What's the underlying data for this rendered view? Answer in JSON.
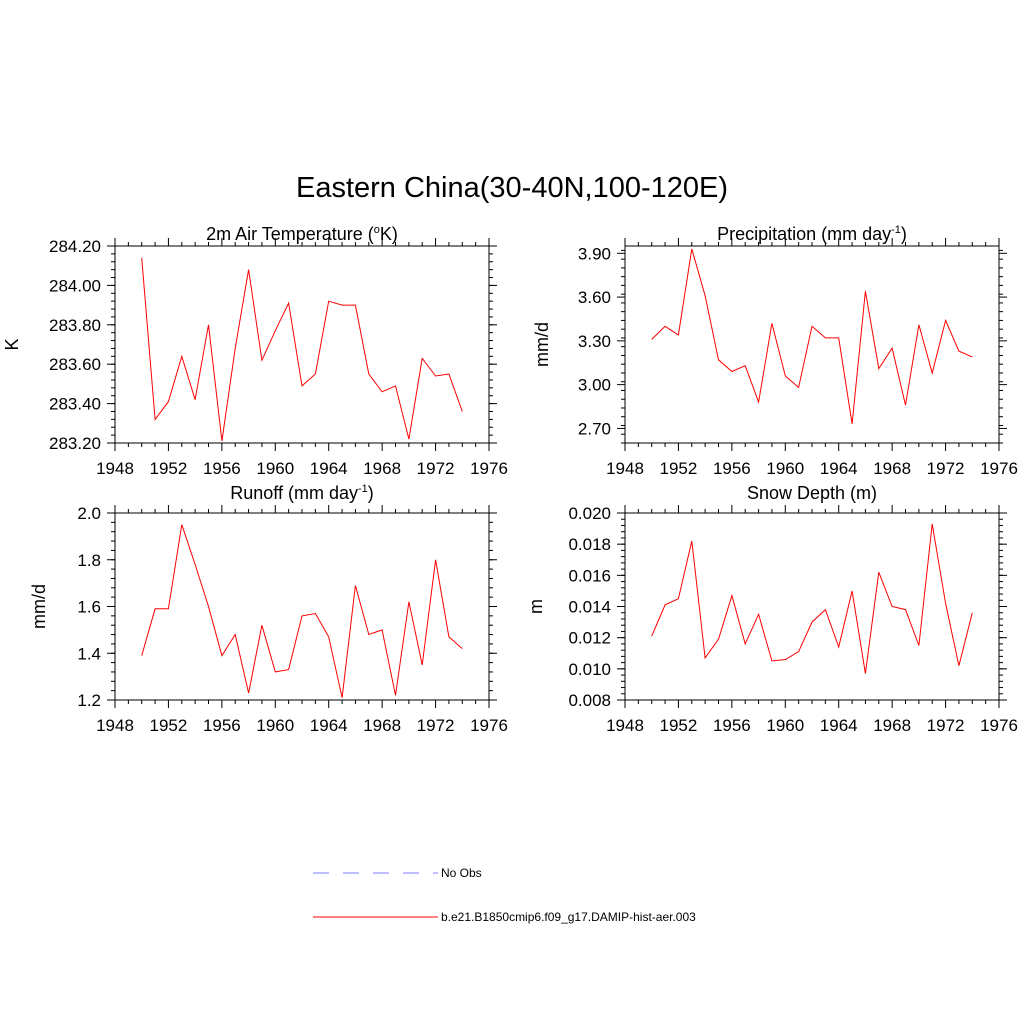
{
  "title": "Eastern China(30-40N,100-120E)",
  "chart_data": [
    {
      "type": "line",
      "title_main": "2m Air Temperature (",
      "title_sup": "o",
      "title_tail": "K)",
      "ylabel": "K",
      "xlim": [
        1948,
        1976
      ],
      "ylim": [
        283.2,
        284.2
      ],
      "xticks": [
        "1948",
        "1952",
        "1956",
        "1960",
        "1964",
        "1968",
        "1972",
        "1976"
      ],
      "yticks": [
        "283.20",
        "283.40",
        "283.60",
        "283.80",
        "284.00",
        "284.20"
      ],
      "series": [
        {
          "color": "#ff0000",
          "x": [
            1950,
            1951,
            1952,
            1953,
            1954,
            1955,
            1956,
            1957,
            1958,
            1959,
            1960,
            1961,
            1962,
            1963,
            1964,
            1965,
            1966,
            1967,
            1968,
            1969,
            1970,
            1971,
            1972,
            1973,
            1974
          ],
          "y": [
            284.14,
            283.32,
            283.41,
            283.64,
            283.42,
            283.8,
            283.21,
            283.68,
            284.08,
            283.62,
            283.77,
            283.91,
            283.49,
            283.55,
            283.92,
            283.9,
            283.9,
            283.55,
            283.46,
            283.49,
            283.22,
            283.63,
            283.54,
            283.55,
            283.36
          ]
        }
      ]
    },
    {
      "type": "line",
      "title_main": "Precipitation (mm day",
      "title_sup": "-1",
      "title_tail": ")",
      "ylabel": "mm/d",
      "xlim": [
        1948,
        1976
      ],
      "ylim": [
        2.6,
        4.0
      ],
      "xticks": [
        "1948",
        "1952",
        "1956",
        "1960",
        "1964",
        "1968",
        "1972",
        "1976"
      ],
      "yticks": [
        "2.70",
        "3.00",
        "3.30",
        "3.60",
        "3.90"
      ],
      "series": [
        {
          "color": "#ff0000",
          "x": [
            1950,
            1951,
            1952,
            1953,
            1954,
            1955,
            1956,
            1957,
            1958,
            1959,
            1960,
            1961,
            1962,
            1963,
            1964,
            1965,
            1966,
            1967,
            1968,
            1969,
            1970,
            1971,
            1972,
            1973,
            1974
          ],
          "y": [
            3.31,
            3.4,
            3.34,
            3.93,
            3.61,
            3.17,
            3.09,
            3.13,
            2.88,
            3.42,
            3.06,
            2.98,
            3.4,
            3.32,
            3.32,
            2.73,
            3.64,
            3.11,
            3.25,
            2.86,
            3.41,
            3.08,
            3.44,
            3.23,
            3.19
          ]
        }
      ]
    },
    {
      "type": "line",
      "title_main": "Runoff (mm day",
      "title_sup": "-1",
      "title_tail": ")",
      "ylabel": "mm/d",
      "xlim": [
        1948,
        1976
      ],
      "ylim": [
        1.2,
        2.0
      ],
      "xticks": [
        "1948",
        "1952",
        "1956",
        "1960",
        "1964",
        "1968",
        "1972",
        "1976"
      ],
      "yticks": [
        "1.2",
        "1.4",
        "1.6",
        "1.8",
        "2.0"
      ],
      "series": [
        {
          "color": "#ff0000",
          "x": [
            1950,
            1951,
            1952,
            1953,
            1954,
            1955,
            1956,
            1957,
            1958,
            1959,
            1960,
            1961,
            1962,
            1963,
            1964,
            1965,
            1966,
            1967,
            1968,
            1969,
            1970,
            1971,
            1972,
            1973,
            1974
          ],
          "y": [
            1.39,
            1.59,
            1.59,
            1.95,
            1.78,
            1.6,
            1.39,
            1.48,
            1.23,
            1.52,
            1.32,
            1.33,
            1.56,
            1.57,
            1.47,
            1.21,
            1.69,
            1.48,
            1.5,
            1.22,
            1.62,
            1.35,
            1.8,
            1.47,
            1.42
          ]
        }
      ]
    },
    {
      "type": "line",
      "title_main": "Snow Depth (m)",
      "title_sup": "",
      "title_tail": "",
      "ylabel": "m",
      "xlim": [
        1948,
        1976
      ],
      "ylim": [
        0.008,
        0.02
      ],
      "xticks": [
        "1948",
        "1952",
        "1956",
        "1960",
        "1964",
        "1968",
        "1972",
        "1976"
      ],
      "yticks": [
        "0.008",
        "0.010",
        "0.012",
        "0.014",
        "0.016",
        "0.018",
        "0.020"
      ],
      "series": [
        {
          "color": "#ff0000",
          "x": [
            1950,
            1951,
            1952,
            1953,
            1954,
            1955,
            1956,
            1957,
            1958,
            1959,
            1960,
            1961,
            1962,
            1963,
            1964,
            1965,
            1966,
            1967,
            1968,
            1969,
            1970,
            1971,
            1972,
            1973,
            1974
          ],
          "y": [
            0.0121,
            0.0141,
            0.0145,
            0.0182,
            0.0107,
            0.0119,
            0.0147,
            0.0116,
            0.0135,
            0.0105,
            0.0106,
            0.0111,
            0.013,
            0.0138,
            0.0114,
            0.015,
            0.0097,
            0.0162,
            0.014,
            0.0138,
            0.0115,
            0.0193,
            0.0142,
            0.0102,
            0.0136
          ]
        }
      ]
    }
  ],
  "legend": {
    "items": [
      {
        "label": "No Obs",
        "color": "#9999ff",
        "style": "dashed"
      },
      {
        "label": "b.e21.B1850cmip6.f09_g17.DAMIP-hist-aer.003",
        "color": "#ff0000",
        "style": "solid"
      }
    ]
  }
}
